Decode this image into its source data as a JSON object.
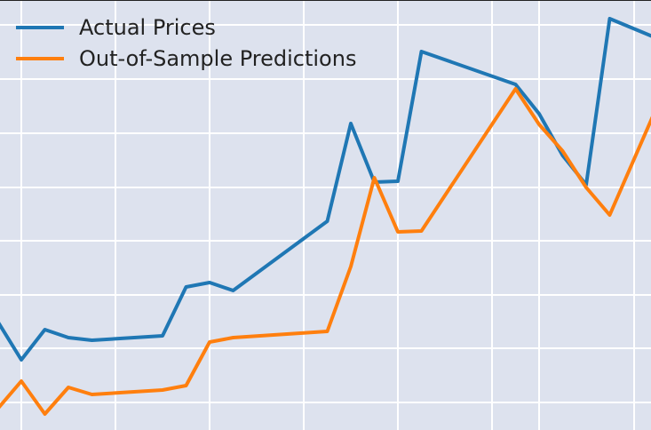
{
  "chart_data": {
    "type": "line",
    "title": "",
    "xlabel": "",
    "ylabel": "",
    "grid": true,
    "legend_position": "top-left",
    "background": "#dde2ee",
    "grid_color": "#ffffff",
    "series": [
      {
        "name": "Actual Prices",
        "color": "#1f77b4",
        "points": [
          [
            -1,
            362
          ],
          [
            0,
            405
          ],
          [
            1,
            371
          ],
          [
            2,
            380
          ],
          [
            3,
            383
          ],
          [
            6,
            378
          ],
          [
            7,
            323
          ],
          [
            8,
            318
          ],
          [
            9,
            327
          ],
          [
            13,
            249
          ],
          [
            14,
            139
          ],
          [
            15,
            205
          ],
          [
            16,
            204
          ],
          [
            17,
            58
          ],
          [
            21,
            95
          ],
          [
            22,
            128
          ],
          [
            23,
            175
          ],
          [
            24,
            208
          ],
          [
            25,
            21
          ],
          [
            28,
            54
          ]
        ]
      },
      {
        "name": "Out-of-Sample Predictions",
        "color": "#ff7f0e",
        "points": [
          [
            -1,
            460
          ],
          [
            0,
            429
          ],
          [
            1,
            466
          ],
          [
            2,
            436
          ],
          [
            3,
            444
          ],
          [
            6,
            439
          ],
          [
            7,
            434
          ],
          [
            8,
            385
          ],
          [
            9,
            380
          ],
          [
            13,
            373
          ],
          [
            14,
            300
          ],
          [
            15,
            200
          ],
          [
            16,
            261
          ],
          [
            17,
            260
          ],
          [
            21,
            100
          ],
          [
            22,
            140
          ],
          [
            23,
            170
          ],
          [
            24,
            211
          ],
          [
            25,
            242
          ],
          [
            28,
            60
          ]
        ]
      }
    ]
  }
}
